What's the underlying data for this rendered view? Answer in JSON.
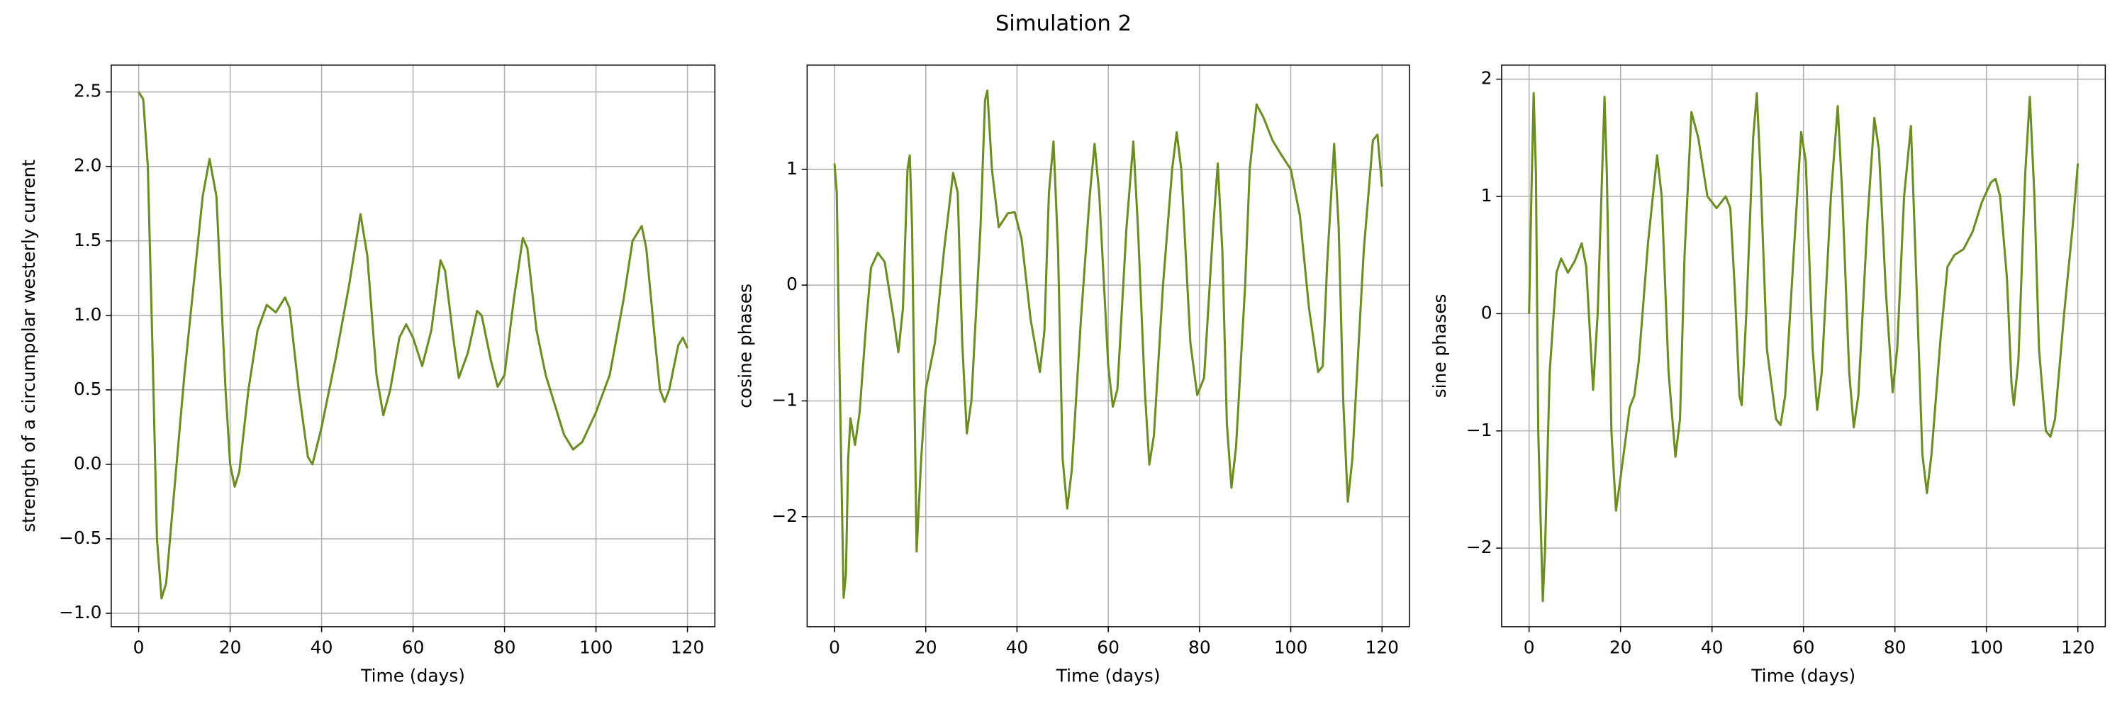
{
  "title": "Simulation 2",
  "chart_data": [
    {
      "type": "line",
      "xlabel": "Time (days)",
      "ylabel": "strength of a circumpolar westerly current",
      "color": "#6b8e23",
      "grid": true,
      "xlim": [
        -6,
        126
      ],
      "ylim": [
        -1.09,
        2.68
      ],
      "xticks": [
        0,
        20,
        40,
        60,
        80,
        100,
        120
      ],
      "yticks": [
        {
          "value": -1.0,
          "label": "−1.0"
        },
        {
          "value": -0.5,
          "label": "−0.5"
        },
        {
          "value": 0,
          "label": "0.0"
        },
        0.5,
        {
          "value": 1,
          "label": "1.0"
        },
        1.5,
        {
          "value": 2,
          "label": "2.0"
        },
        2.5
      ],
      "x": [
        0,
        1,
        2,
        3,
        4,
        5,
        6,
        8,
        10,
        12,
        14,
        15.5,
        17,
        19,
        20,
        21,
        22,
        24,
        26,
        28,
        30,
        32,
        33,
        35,
        37,
        38,
        40,
        43,
        46,
        48.5,
        50,
        52,
        53.5,
        55,
        57,
        58.5,
        60,
        62,
        64,
        66,
        67,
        69,
        70,
        72,
        74,
        75,
        77,
        78.5,
        80,
        82,
        84,
        85,
        87,
        89,
        91,
        93,
        95,
        97,
        100,
        103,
        106,
        108,
        110,
        111,
        113,
        114,
        115,
        116,
        118,
        119,
        120
      ],
      "values": [
        2.5,
        2.45,
        2.0,
        0.8,
        -0.5,
        -0.9,
        -0.8,
        -0.1,
        0.6,
        1.2,
        1.8,
        2.05,
        1.8,
        0.5,
        0,
        -0.15,
        -0.05,
        0.5,
        0.9,
        1.07,
        1.02,
        1.12,
        1.05,
        0.5,
        0.05,
        0,
        0.25,
        0.7,
        1.2,
        1.68,
        1.4,
        0.6,
        0.33,
        0.5,
        0.85,
        0.94,
        0.85,
        0.66,
        0.9,
        1.37,
        1.3,
        0.8,
        0.58,
        0.75,
        1.03,
        1.0,
        0.7,
        0.52,
        0.6,
        1.1,
        1.52,
        1.45,
        0.9,
        0.6,
        0.4,
        0.2,
        0.1,
        0.15,
        0.35,
        0.6,
        1.1,
        1.5,
        1.6,
        1.45,
        0.8,
        0.5,
        0.42,
        0.5,
        0.8,
        0.85,
        0.78
      ]
    },
    {
      "type": "line",
      "xlabel": "Time (days)",
      "ylabel": "cosine phases",
      "color": "#6b8e23",
      "grid": true,
      "xlim": [
        -6,
        126
      ],
      "ylim": [
        -2.95,
        1.9
      ],
      "xticks": [
        0,
        20,
        40,
        60,
        80,
        100,
        120
      ],
      "yticks": [
        {
          "value": -2,
          "label": "−2"
        },
        {
          "value": -1,
          "label": "−1"
        },
        0,
        1
      ],
      "x": [
        0,
        0.5,
        1,
        2,
        2.5,
        3,
        3.5,
        4.5,
        5.5,
        7,
        8,
        9.5,
        11,
        13,
        14,
        15,
        16,
        16.5,
        17,
        18,
        19,
        20,
        22,
        24,
        26,
        27,
        28,
        29,
        30,
        32,
        33,
        33.5,
        34.5,
        36,
        38,
        39.5,
        41,
        43,
        45,
        46,
        47,
        48,
        49,
        50,
        51,
        52,
        54,
        56,
        57,
        58,
        60,
        61,
        62,
        64,
        65.5,
        66.5,
        68,
        69,
        70,
        72,
        74,
        75,
        76,
        78,
        79.5,
        81,
        83,
        84,
        85,
        86,
        87,
        88,
        90,
        91,
        92.5,
        94,
        96,
        98,
        100,
        102,
        104,
        106,
        107,
        108,
        109.5,
        110.5,
        111.5,
        112.5,
        113.5,
        116,
        118,
        119,
        120
      ],
      "values": [
        1.05,
        0.8,
        -0.5,
        -2.7,
        -2.5,
        -1.5,
        -1.15,
        -1.38,
        -1.1,
        -0.3,
        0.15,
        0.28,
        0.2,
        -0.3,
        -0.58,
        -0.2,
        1.0,
        1.12,
        0.5,
        -2.3,
        -1.5,
        -0.9,
        -0.5,
        0.3,
        0.97,
        0.8,
        -0.5,
        -1.28,
        -1.0,
        0.5,
        1.6,
        1.68,
        1.0,
        0.5,
        0.62,
        0.63,
        0.4,
        -0.3,
        -0.75,
        -0.4,
        0.8,
        1.24,
        0.3,
        -1.5,
        -1.93,
        -1.6,
        -0.3,
        0.8,
        1.22,
        0.8,
        -0.7,
        -1.05,
        -0.9,
        0.5,
        1.24,
        0.5,
        -0.9,
        -1.55,
        -1.3,
        0,
        1.0,
        1.32,
        1.0,
        -0.5,
        -0.95,
        -0.8,
        0.5,
        1.05,
        0.3,
        -1.2,
        -1.75,
        -1.4,
        0,
        1.0,
        1.56,
        1.45,
        1.25,
        1.12,
        1.0,
        0.6,
        -0.2,
        -0.75,
        -0.7,
        0.2,
        1.22,
        0.5,
        -1.0,
        -1.87,
        -1.5,
        0.3,
        1.25,
        1.3,
        0.85
      ]
    },
    {
      "type": "line",
      "xlabel": "Time (days)",
      "ylabel": "sine phases",
      "color": "#6b8e23",
      "grid": true,
      "xlim": [
        -6,
        126
      ],
      "ylim": [
        -2.67,
        2.12
      ],
      "xticks": [
        0,
        20,
        40,
        60,
        80,
        100,
        120
      ],
      "yticks": [
        {
          "value": -2,
          "label": "−2"
        },
        {
          "value": -1,
          "label": "−1"
        },
        0,
        1,
        2
      ],
      "x": [
        0,
        0.5,
        1,
        1.5,
        2,
        3,
        3.5,
        4.5,
        6,
        7,
        8.5,
        10,
        11.5,
        12.5,
        14,
        15,
        16.5,
        17,
        18,
        19,
        20,
        22,
        23,
        24,
        26,
        28,
        29,
        30.5,
        32,
        33,
        34,
        35.5,
        37,
        39,
        41,
        43,
        44,
        45,
        46,
        46.5,
        47.5,
        49,
        49.8,
        50.5,
        52,
        54,
        55,
        56,
        58,
        59.5,
        60.5,
        62,
        63,
        64,
        66,
        67.5,
        68.5,
        70,
        71,
        72,
        74,
        75.5,
        76.5,
        78,
        79.5,
        80.5,
        82,
        83.5,
        84.5,
        86,
        87,
        88,
        90,
        91.5,
        93,
        95,
        97,
        99,
        101,
        102,
        103,
        104.5,
        105.5,
        106,
        107,
        108.5,
        109.5,
        110.5,
        111.5,
        113,
        114,
        115,
        117,
        119,
        120
      ],
      "values": [
        0,
        1.0,
        1.88,
        1.2,
        -1.0,
        -2.45,
        -2.0,
        -0.5,
        0.35,
        0.47,
        0.35,
        0.45,
        0.6,
        0.4,
        -0.65,
        0,
        1.85,
        1.2,
        -1.0,
        -1.68,
        -1.4,
        -0.8,
        -0.7,
        -0.4,
        0.6,
        1.35,
        1.0,
        -0.5,
        -1.22,
        -0.9,
        0.5,
        1.72,
        1.5,
        1.0,
        0.9,
        1.0,
        0.9,
        0.2,
        -0.7,
        -0.78,
        0,
        1.5,
        1.88,
        1.3,
        -0.3,
        -0.9,
        -0.95,
        -0.7,
        0.6,
        1.55,
        1.3,
        -0.3,
        -0.82,
        -0.5,
        1.0,
        1.77,
        1.0,
        -0.5,
        -0.97,
        -0.7,
        0.8,
        1.67,
        1.4,
        0.2,
        -0.67,
        -0.3,
        1.0,
        1.6,
        0.5,
        -1.2,
        -1.53,
        -1.2,
        -0.2,
        0.4,
        0.5,
        0.55,
        0.7,
        0.95,
        1.12,
        1.15,
        1.0,
        0.3,
        -0.6,
        -0.78,
        -0.4,
        1.2,
        1.85,
        1.0,
        -0.3,
        -1.0,
        -1.05,
        -0.9,
        0,
        0.8,
        1.28
      ]
    }
  ]
}
